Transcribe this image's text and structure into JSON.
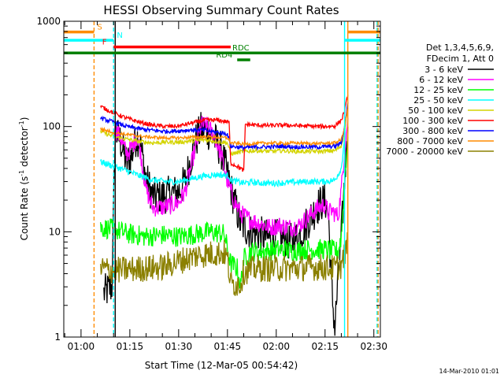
{
  "chart_data": {
    "type": "line",
    "title": "HESSI Observing Summary Count Rates",
    "xlabel": "Start Time (12-Mar-05 00:54:42)",
    "ylabel_main": "Count Rate (s",
    "ylabel_sup1": "-1",
    "ylabel_mid": " detector",
    "ylabel_sup2": "-1",
    "ylabel_end": ")",
    "yscale": "log",
    "xlim": [
      54.7,
      152
    ],
    "ylim": [
      1,
      1000
    ],
    "x_ticks": [
      {
        "value": 60,
        "label": "01:00"
      },
      {
        "value": 75,
        "label": "01:15"
      },
      {
        "value": 90,
        "label": "01:30"
      },
      {
        "value": 105,
        "label": "01:45"
      },
      {
        "value": 120,
        "label": "02:00"
      },
      {
        "value": 135,
        "label": "02:15"
      },
      {
        "value": 150,
        "label": "02:30"
      }
    ],
    "y_ticks": [
      {
        "value": 1,
        "label": "1"
      },
      {
        "value": 10,
        "label": "10"
      },
      {
        "value": 100,
        "label": "100"
      },
      {
        "value": 1000,
        "label": "1000"
      }
    ],
    "legend": {
      "placement": "right",
      "header": [
        "Det 1,3,4,5,6,9,",
        "FDecim 1, Att 0"
      ],
      "entries": [
        {
          "label": "3 - 6 keV",
          "color": "#000000"
        },
        {
          "label": "6 - 12 keV",
          "color": "#ff00ff"
        },
        {
          "label": "12 - 25 keV",
          "color": "#00ff00"
        },
        {
          "label": "25 - 50 keV",
          "color": "#00ffff"
        },
        {
          "label": "50 - 100 keV",
          "color": "#d4d400"
        },
        {
          "label": "100 - 300 keV",
          "color": "#ff0000"
        },
        {
          "label": "300 - 800 keV",
          "color": "#0000ff"
        },
        {
          "label": "800 - 7000 keV",
          "color": "#ff8c00"
        },
        {
          "label": "7000 - 20000 keV",
          "color": "#8b8000"
        }
      ]
    },
    "flag_bars": [
      {
        "label": "S",
        "color": "#ff8c00",
        "y": 790,
        "segments": [
          [
            54.7,
            64
          ],
          [
            142,
            152
          ]
        ]
      },
      {
        "label": "N",
        "color": "#00ffff",
        "y": 660,
        "segments": [
          [
            54.7,
            70
          ],
          [
            141,
            152
          ]
        ]
      },
      {
        "label": "F",
        "color": "#ff0000",
        "y": 570,
        "segments": [
          [
            70,
            106
          ]
        ]
      },
      {
        "label": "RDC",
        "color": "#008000",
        "y": 500,
        "segments": [
          [
            54.7,
            152
          ]
        ]
      },
      {
        "label": "RD4",
        "color": "#008000",
        "y": 430,
        "segments": [
          [
            108,
            112
          ]
        ]
      }
    ],
    "vertical_lines": [
      {
        "x": 64,
        "color": "#ff8c00",
        "style": "dashed"
      },
      {
        "x": 70,
        "color": "#00ffff",
        "style": "dashed"
      },
      {
        "x": 70.5,
        "color": "#000000",
        "style": "solid"
      },
      {
        "x": 141,
        "color": "#00ffff",
        "style": "solid"
      },
      {
        "x": 142,
        "color": "#ff8c00",
        "style": "solid"
      },
      {
        "x": 151,
        "color": "#00ffff",
        "style": "dashed"
      },
      {
        "x": 151.3,
        "color": "#ff8c00",
        "style": "dashed"
      }
    ],
    "series": [
      {
        "name": "3 - 6 keV",
        "color": "#000000",
        "noise": 0.18,
        "points": [
          [
            67,
            2.6
          ],
          [
            69.5,
            3
          ],
          [
            70.5,
            90
          ],
          [
            72,
            75
          ],
          [
            74,
            45
          ],
          [
            75.5,
            52
          ],
          [
            77,
            80
          ],
          [
            78,
            75
          ],
          [
            80,
            32
          ],
          [
            82,
            22
          ],
          [
            85,
            22
          ],
          [
            88,
            23
          ],
          [
            90,
            24
          ],
          [
            92,
            30
          ],
          [
            95,
            70
          ],
          [
            97,
            95
          ],
          [
            99,
            90
          ],
          [
            101,
            75
          ],
          [
            103,
            60
          ],
          [
            105,
            35
          ],
          [
            107,
            20
          ],
          [
            109,
            12
          ],
          [
            112,
            10
          ],
          [
            115,
            9.5
          ],
          [
            118,
            8.5
          ],
          [
            121,
            9
          ],
          [
            124,
            8
          ],
          [
            127,
            9
          ],
          [
            130,
            13
          ],
          [
            133,
            18
          ],
          [
            135,
            20
          ],
          [
            136,
            15
          ],
          [
            137,
            3
          ],
          [
            138,
            1.2
          ],
          [
            139,
            3.5
          ],
          [
            140,
            9
          ],
          [
            141,
            30
          ],
          [
            142,
            100
          ]
        ]
      },
      {
        "name": "6 - 12 keV",
        "color": "#ff00ff",
        "noise": 0.09,
        "points": [
          [
            70.3,
            95
          ],
          [
            72,
            80
          ],
          [
            74,
            55
          ],
          [
            75.5,
            62
          ],
          [
            77,
            80
          ],
          [
            78,
            65
          ],
          [
            80,
            25
          ],
          [
            82,
            17
          ],
          [
            85,
            17
          ],
          [
            88,
            18
          ],
          [
            90,
            19
          ],
          [
            92,
            24
          ],
          [
            95,
            60
          ],
          [
            97,
            105
          ],
          [
            99,
            100
          ],
          [
            101,
            80
          ],
          [
            103,
            55
          ],
          [
            105,
            30
          ],
          [
            107,
            20
          ],
          [
            109,
            15
          ],
          [
            112,
            13
          ],
          [
            115,
            12
          ],
          [
            118,
            11
          ],
          [
            121,
            11.5
          ],
          [
            124,
            11
          ],
          [
            127,
            11.5
          ],
          [
            130,
            14
          ],
          [
            133,
            17
          ],
          [
            135,
            18
          ],
          [
            136,
            15
          ],
          [
            137,
            16
          ],
          [
            139,
            14
          ],
          [
            140,
            25
          ],
          [
            141,
            60
          ],
          [
            142,
            120
          ]
        ]
      },
      {
        "name": "12 - 25 keV",
        "color": "#00ff00",
        "noise": 0.1,
        "points": [
          [
            66,
            11
          ],
          [
            70,
            10.5
          ],
          [
            75,
            9.5
          ],
          [
            80,
            9
          ],
          [
            85,
            9.3
          ],
          [
            90,
            9
          ],
          [
            95,
            9.5
          ],
          [
            100,
            10
          ],
          [
            104,
            9.5
          ],
          [
            106,
            5
          ],
          [
            108,
            4.5
          ],
          [
            109,
            3
          ],
          [
            110,
            5.5
          ],
          [
            112,
            6.5
          ],
          [
            116,
            6.5
          ],
          [
            120,
            6.8
          ],
          [
            125,
            6.6
          ],
          [
            130,
            6.8
          ],
          [
            135,
            6.8
          ],
          [
            139,
            6.5
          ],
          [
            140,
            9
          ],
          [
            141,
            30
          ],
          [
            142,
            80
          ]
        ]
      },
      {
        "name": "25 - 50 keV",
        "color": "#00ffff",
        "noise": 0.03,
        "points": [
          [
            66,
            46
          ],
          [
            70,
            42
          ],
          [
            74,
            38
          ],
          [
            78,
            34
          ],
          [
            82,
            31
          ],
          [
            86,
            30
          ],
          [
            90,
            30
          ],
          [
            94,
            32
          ],
          [
            98,
            34
          ],
          [
            102,
            35
          ],
          [
            105.5,
            34
          ],
          [
            106,
            31
          ],
          [
            110,
            29
          ],
          [
            112,
            29.5
          ],
          [
            116,
            29
          ],
          [
            120,
            29
          ],
          [
            125,
            29.5
          ],
          [
            130,
            30
          ],
          [
            135,
            30
          ],
          [
            138,
            31
          ],
          [
            140,
            40
          ],
          [
            141,
            80
          ],
          [
            142,
            170
          ]
        ]
      },
      {
        "name": "50 - 100 keV",
        "color": "#d4d400",
        "noise": 0.02,
        "points": [
          [
            66,
            90
          ],
          [
            70,
            80
          ],
          [
            74,
            76
          ],
          [
            78,
            72
          ],
          [
            82,
            70
          ],
          [
            86,
            71
          ],
          [
            90,
            71
          ],
          [
            94,
            73
          ],
          [
            98,
            75
          ],
          [
            102,
            72
          ],
          [
            105,
            70
          ],
          [
            106,
            55
          ],
          [
            110,
            58
          ],
          [
            114,
            59
          ],
          [
            118,
            58
          ],
          [
            122,
            59
          ],
          [
            126,
            58
          ],
          [
            130,
            58
          ],
          [
            134,
            58
          ],
          [
            138,
            59
          ],
          [
            140,
            65
          ],
          [
            141,
            90
          ],
          [
            142,
            160
          ]
        ]
      },
      {
        "name": "100 - 300 keV",
        "color": "#ff0000",
        "noise": 0.02,
        "points": [
          [
            66,
            155
          ],
          [
            70,
            135
          ],
          [
            74,
            120
          ],
          [
            78,
            110
          ],
          [
            82,
            103
          ],
          [
            86,
            100
          ],
          [
            90,
            101
          ],
          [
            94,
            108
          ],
          [
            98,
            115
          ],
          [
            102,
            115
          ],
          [
            105.5,
            110
          ],
          [
            106,
            45
          ],
          [
            108,
            42
          ],
          [
            110,
            38
          ],
          [
            110.5,
            105
          ],
          [
            114,
            103
          ],
          [
            118,
            102
          ],
          [
            122,
            103
          ],
          [
            126,
            102
          ],
          [
            130,
            101
          ],
          [
            134,
            100
          ],
          [
            138,
            101
          ],
          [
            140,
            115
          ],
          [
            141,
            140
          ],
          [
            142,
            200
          ]
        ]
      },
      {
        "name": "300 - 800 keV",
        "color": "#0000ff",
        "noise": 0.02,
        "points": [
          [
            66,
            120
          ],
          [
            70,
            110
          ],
          [
            74,
            100
          ],
          [
            78,
            95
          ],
          [
            82,
            92
          ],
          [
            86,
            90
          ],
          [
            90,
            91
          ],
          [
            94,
            93
          ],
          [
            98,
            92
          ],
          [
            102,
            88
          ],
          [
            105,
            85
          ],
          [
            106,
            65
          ],
          [
            110,
            63
          ],
          [
            114,
            64
          ],
          [
            118,
            64
          ],
          [
            122,
            65
          ],
          [
            126,
            64
          ],
          [
            130,
            64
          ],
          [
            134,
            64
          ],
          [
            138,
            65
          ],
          [
            140,
            70
          ],
          [
            141,
            100
          ],
          [
            142,
            170
          ]
        ]
      },
      {
        "name": "800 - 7000 keV",
        "color": "#ff8c00",
        "noise": 0.015,
        "points": [
          [
            66,
            95
          ],
          [
            70,
            88
          ],
          [
            74,
            84
          ],
          [
            78,
            81
          ],
          [
            82,
            79
          ],
          [
            86,
            78
          ],
          [
            90,
            78
          ],
          [
            94,
            79
          ],
          [
            98,
            80
          ],
          [
            102,
            79
          ],
          [
            105,
            78
          ],
          [
            106,
            70
          ],
          [
            110,
            68
          ],
          [
            114,
            69
          ],
          [
            118,
            70
          ],
          [
            122,
            69
          ],
          [
            126,
            70
          ],
          [
            130,
            69
          ],
          [
            134,
            69
          ],
          [
            138,
            70
          ],
          [
            140,
            75
          ],
          [
            141,
            100
          ],
          [
            142,
            150
          ]
        ]
      },
      {
        "name": "7000 - 20000 keV",
        "color": "#8b8000",
        "noise": 0.13,
        "points": [
          [
            66,
            4.5
          ],
          [
            70,
            4.3
          ],
          [
            75,
            4.4
          ],
          [
            80,
            4.5
          ],
          [
            85,
            4.6
          ],
          [
            88,
            5
          ],
          [
            92,
            5.5
          ],
          [
            96,
            6
          ],
          [
            100,
            6.2
          ],
          [
            104,
            6.3
          ],
          [
            105,
            5.5
          ],
          [
            106,
            3.2
          ],
          [
            109,
            3.2
          ],
          [
            110,
            4.2
          ],
          [
            114,
            4.5
          ],
          [
            118,
            4.5
          ],
          [
            122,
            4.5
          ],
          [
            126,
            4.5
          ],
          [
            130,
            4.6
          ],
          [
            134,
            4.6
          ],
          [
            138,
            4.5
          ],
          [
            140,
            4.8
          ],
          [
            141,
            6
          ],
          [
            142,
            8
          ]
        ]
      }
    ]
  },
  "footer": {
    "timestamp": "14-Mar-2010 01:01"
  }
}
